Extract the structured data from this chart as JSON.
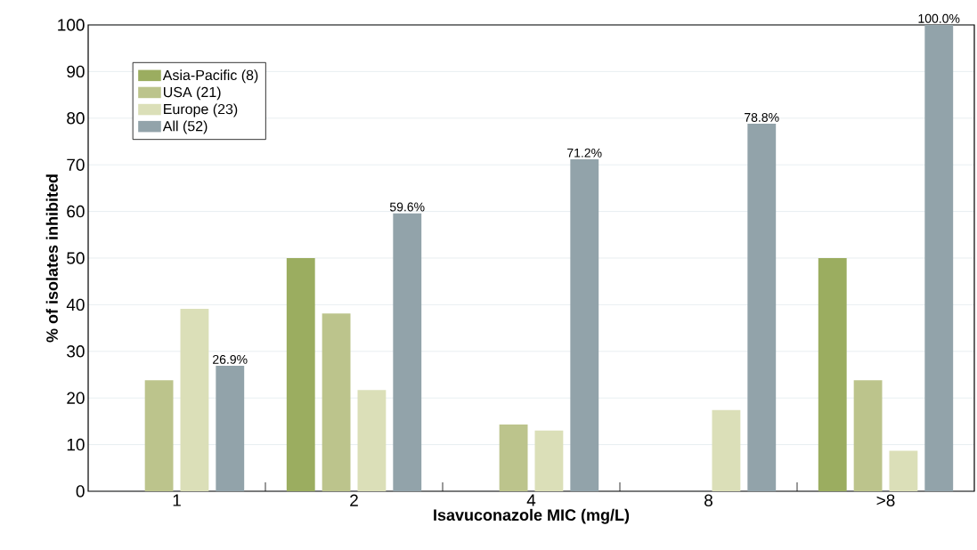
{
  "chart_data": {
    "type": "bar",
    "xlabel": "Isavuconazole MIC (mg/L)",
    "ylabel": "% of isolates inhibited",
    "categories": [
      "1",
      "2",
      "4",
      "8",
      ">8"
    ],
    "series": [
      {
        "name": "Asia-Pacific (8)",
        "color": "#9bad60",
        "values": [
          0,
          50,
          0,
          0,
          50
        ]
      },
      {
        "name": "USA (21)",
        "color": "#bcc48c",
        "values": [
          23.8,
          38.1,
          14.3,
          0,
          23.8
        ]
      },
      {
        "name": "Europe (23)",
        "color": "#dbdfb8",
        "values": [
          39.1,
          21.7,
          13.0,
          17.4,
          8.7
        ]
      },
      {
        "name": "All (52)",
        "color": "#92a3aa",
        "values": [
          26.9,
          59.6,
          71.2,
          78.8,
          100.0
        ],
        "value_labels": [
          "26.9%",
          "59.6%",
          "71.2%",
          "78.8%",
          "100.0%"
        ]
      }
    ],
    "ylim": [
      0,
      100
    ],
    "yticks": [
      0,
      10,
      20,
      30,
      40,
      50,
      60,
      70,
      80,
      90,
      100
    ],
    "grid": "y",
    "legend": "top left"
  }
}
